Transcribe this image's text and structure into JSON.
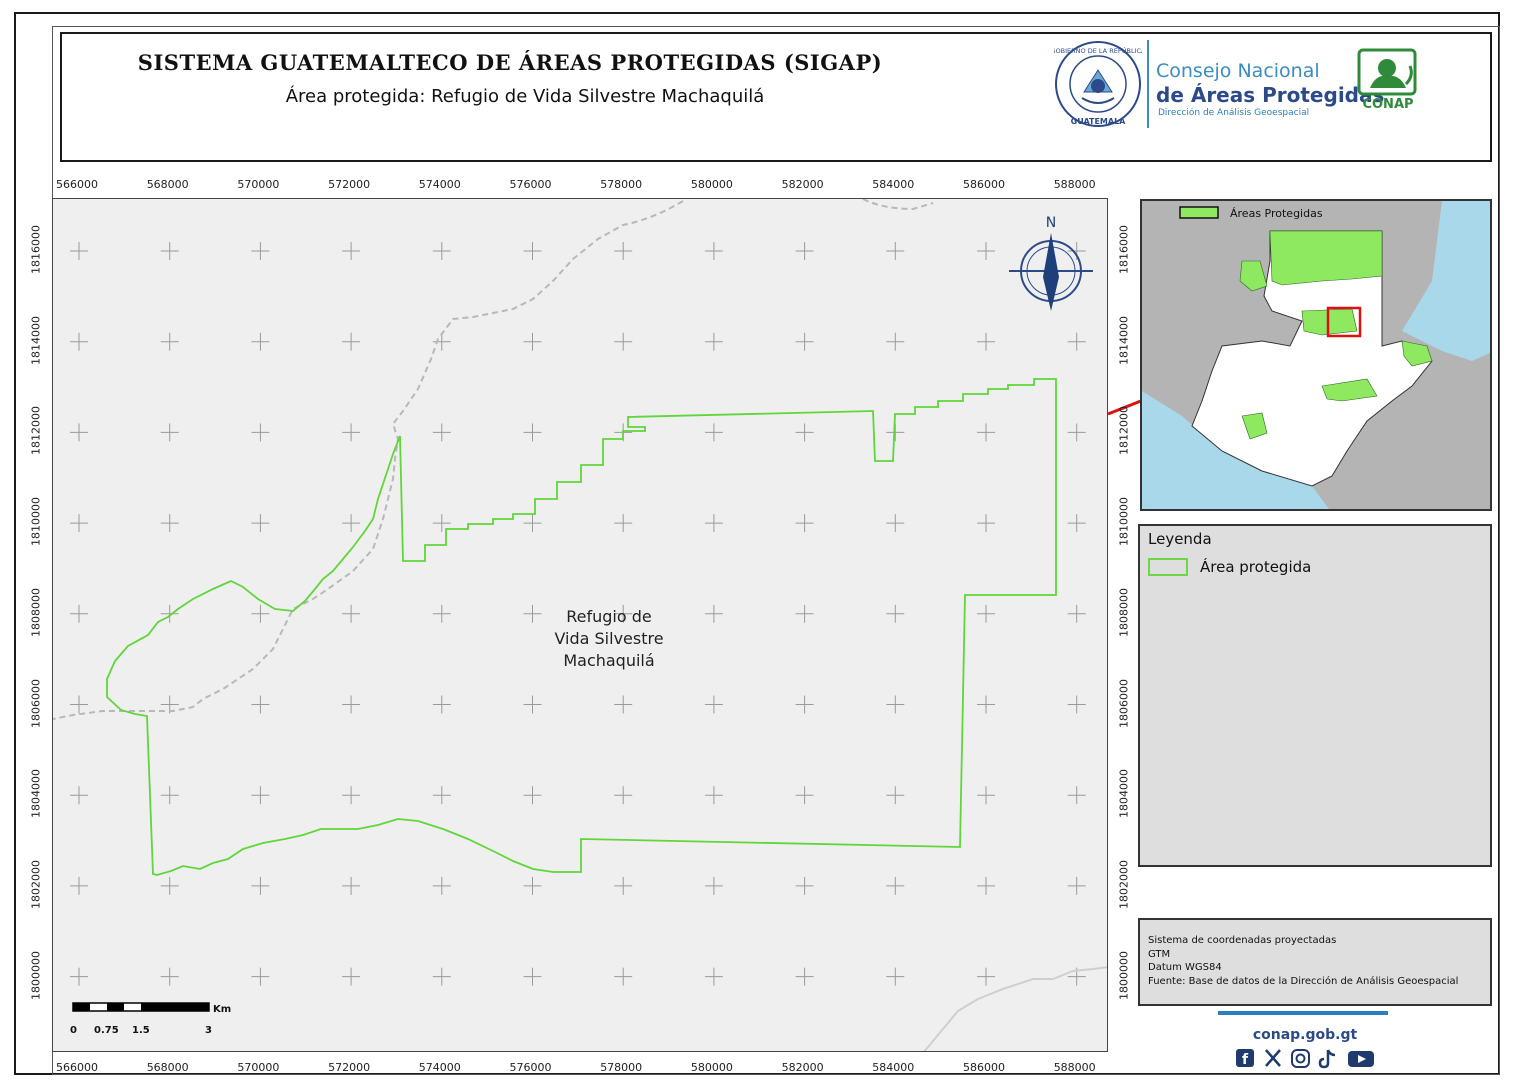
{
  "header": {
    "title": "SISTEMA GUATEMALTECO DE ÁREAS PROTEGIDAS  (SIGAP)",
    "subtitle": "Área protegida: Refugio de Vida Silvestre Machaquilá",
    "seal_top": "GOBIERNO DE LA REPÚBLICA",
    "seal_bottom": "GUATEMALA",
    "org_line1": "Consejo Nacional",
    "org_line2": "de Áreas Protegidas",
    "org_line3": "Dirección de Análisis Geoespacial",
    "logo_text": "CONAP"
  },
  "map": {
    "area_label_line1": "Refugio de",
    "area_label_line2": "Vida Silvestre",
    "area_label_line3": "Machaquilá",
    "north_label": "N",
    "x_ticks": [
      "566000",
      "568000",
      "570000",
      "572000",
      "574000",
      "576000",
      "578000",
      "580000",
      "582000",
      "584000",
      "586000",
      "588000"
    ],
    "y_ticks": [
      "1816000",
      "1814000",
      "1812000",
      "1810000",
      "1808000",
      "1806000",
      "1804000",
      "1802000",
      "1800000"
    ],
    "boundary_color": "#5fd63a",
    "scale": {
      "unit": "Km",
      "labels": [
        "0",
        "0.75",
        "1.5",
        "3"
      ]
    }
  },
  "inset": {
    "legend_label": "Áreas Protegidas",
    "protected_color": "#8ee860",
    "water_color": "#a8d8ea"
  },
  "legend": {
    "title": "Leyenda",
    "item": "Área protegida"
  },
  "info": {
    "line1": "Sistema de coordenadas proyectadas",
    "line2": "GTM",
    "line3": "Datum WGS84",
    "line4": "Fuente: Base de datos de la Dirección de Análisis Geoespacial"
  },
  "footer": {
    "website": "conap.gob.gt",
    "social_icons": [
      "facebook-icon",
      "x-icon",
      "instagram-icon",
      "tiktok-icon",
      "youtube-icon"
    ]
  }
}
